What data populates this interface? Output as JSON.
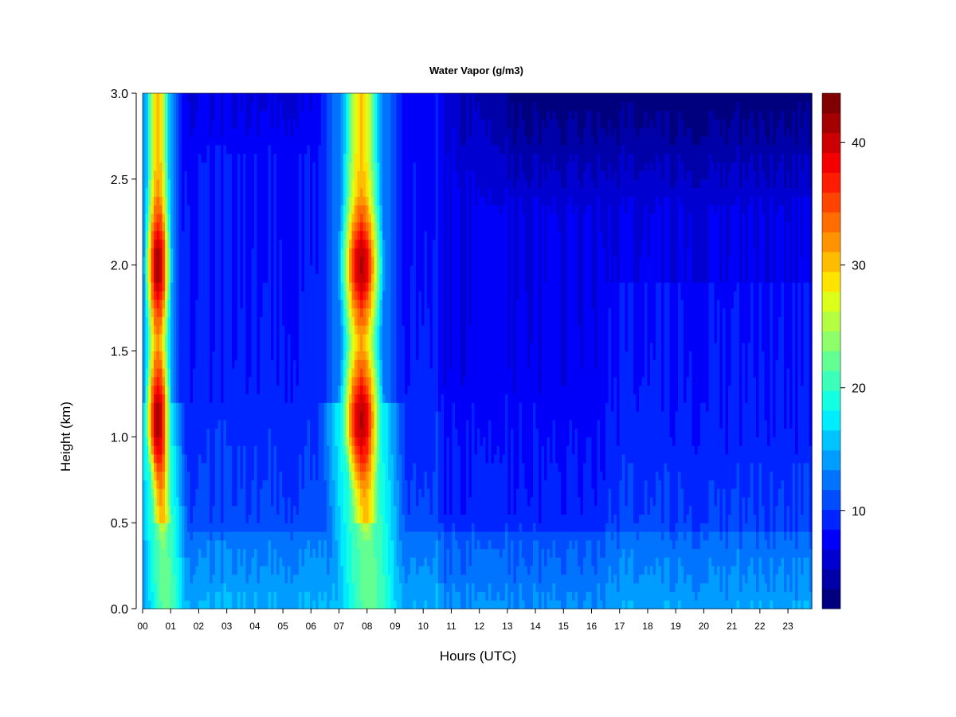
{
  "chart_data": {
    "type": "heatmap",
    "title": "Water Vapor (g/m3)",
    "xlabel": "Hours (UTC)",
    "ylabel": "Height (km)",
    "xlim": [
      0,
      23.85
    ],
    "ylim": [
      0.0,
      3.0
    ],
    "x_ticks": [
      "00",
      "01",
      "02",
      "03",
      "04",
      "05",
      "06",
      "07",
      "08",
      "09",
      "10",
      "11",
      "12",
      "13",
      "14",
      "15",
      "16",
      "17",
      "18",
      "19",
      "20",
      "21",
      "22",
      "23"
    ],
    "y_ticks": [
      "0.0",
      "0.5",
      "1.0",
      "1.5",
      "2.0",
      "2.5",
      "3.0"
    ],
    "colorbar": {
      "range": [
        2,
        44
      ],
      "levels": [
        2,
        4,
        6,
        8,
        10,
        12,
        14,
        16,
        18,
        20,
        22,
        24,
        26,
        28,
        30,
        32,
        34,
        36,
        38,
        40,
        42,
        44
      ],
      "tick_values": [
        10,
        20,
        30,
        40
      ],
      "tick_labels": [
        "10",
        "20",
        "30",
        "40"
      ],
      "colors": [
        "#00007F",
        "#0000A8",
        "#0000D1",
        "#0000FA",
        "#0024FF",
        "#004CFF",
        "#0074FF",
        "#009CFF",
        "#00C4FF",
        "#00ECFF",
        "#14FFE2",
        "#3CFFBA",
        "#64FF92",
        "#8CFF6A",
        "#B4FF42",
        "#DCFF1A",
        "#FFE400",
        "#FFBC00",
        "#FF9400",
        "#FF6C00",
        "#FF4400",
        "#FF1C00",
        "#F40000",
        "#CC0000",
        "#A40000",
        "#7F0000"
      ]
    },
    "plumes": [
      {
        "center_hour": 0.55,
        "core_width_hours": 0.7,
        "peak_value": 42,
        "peak_heights_km": [
          1.1,
          2.0
        ]
      },
      {
        "center_hour": 7.8,
        "core_width_hours": 1.1,
        "peak_value": 41,
        "peak_heights_km": [
          1.1,
          2.0
        ]
      }
    ],
    "background": {
      "near_surface_value": 15,
      "aloft_value": 8,
      "top_value": 3
    }
  }
}
